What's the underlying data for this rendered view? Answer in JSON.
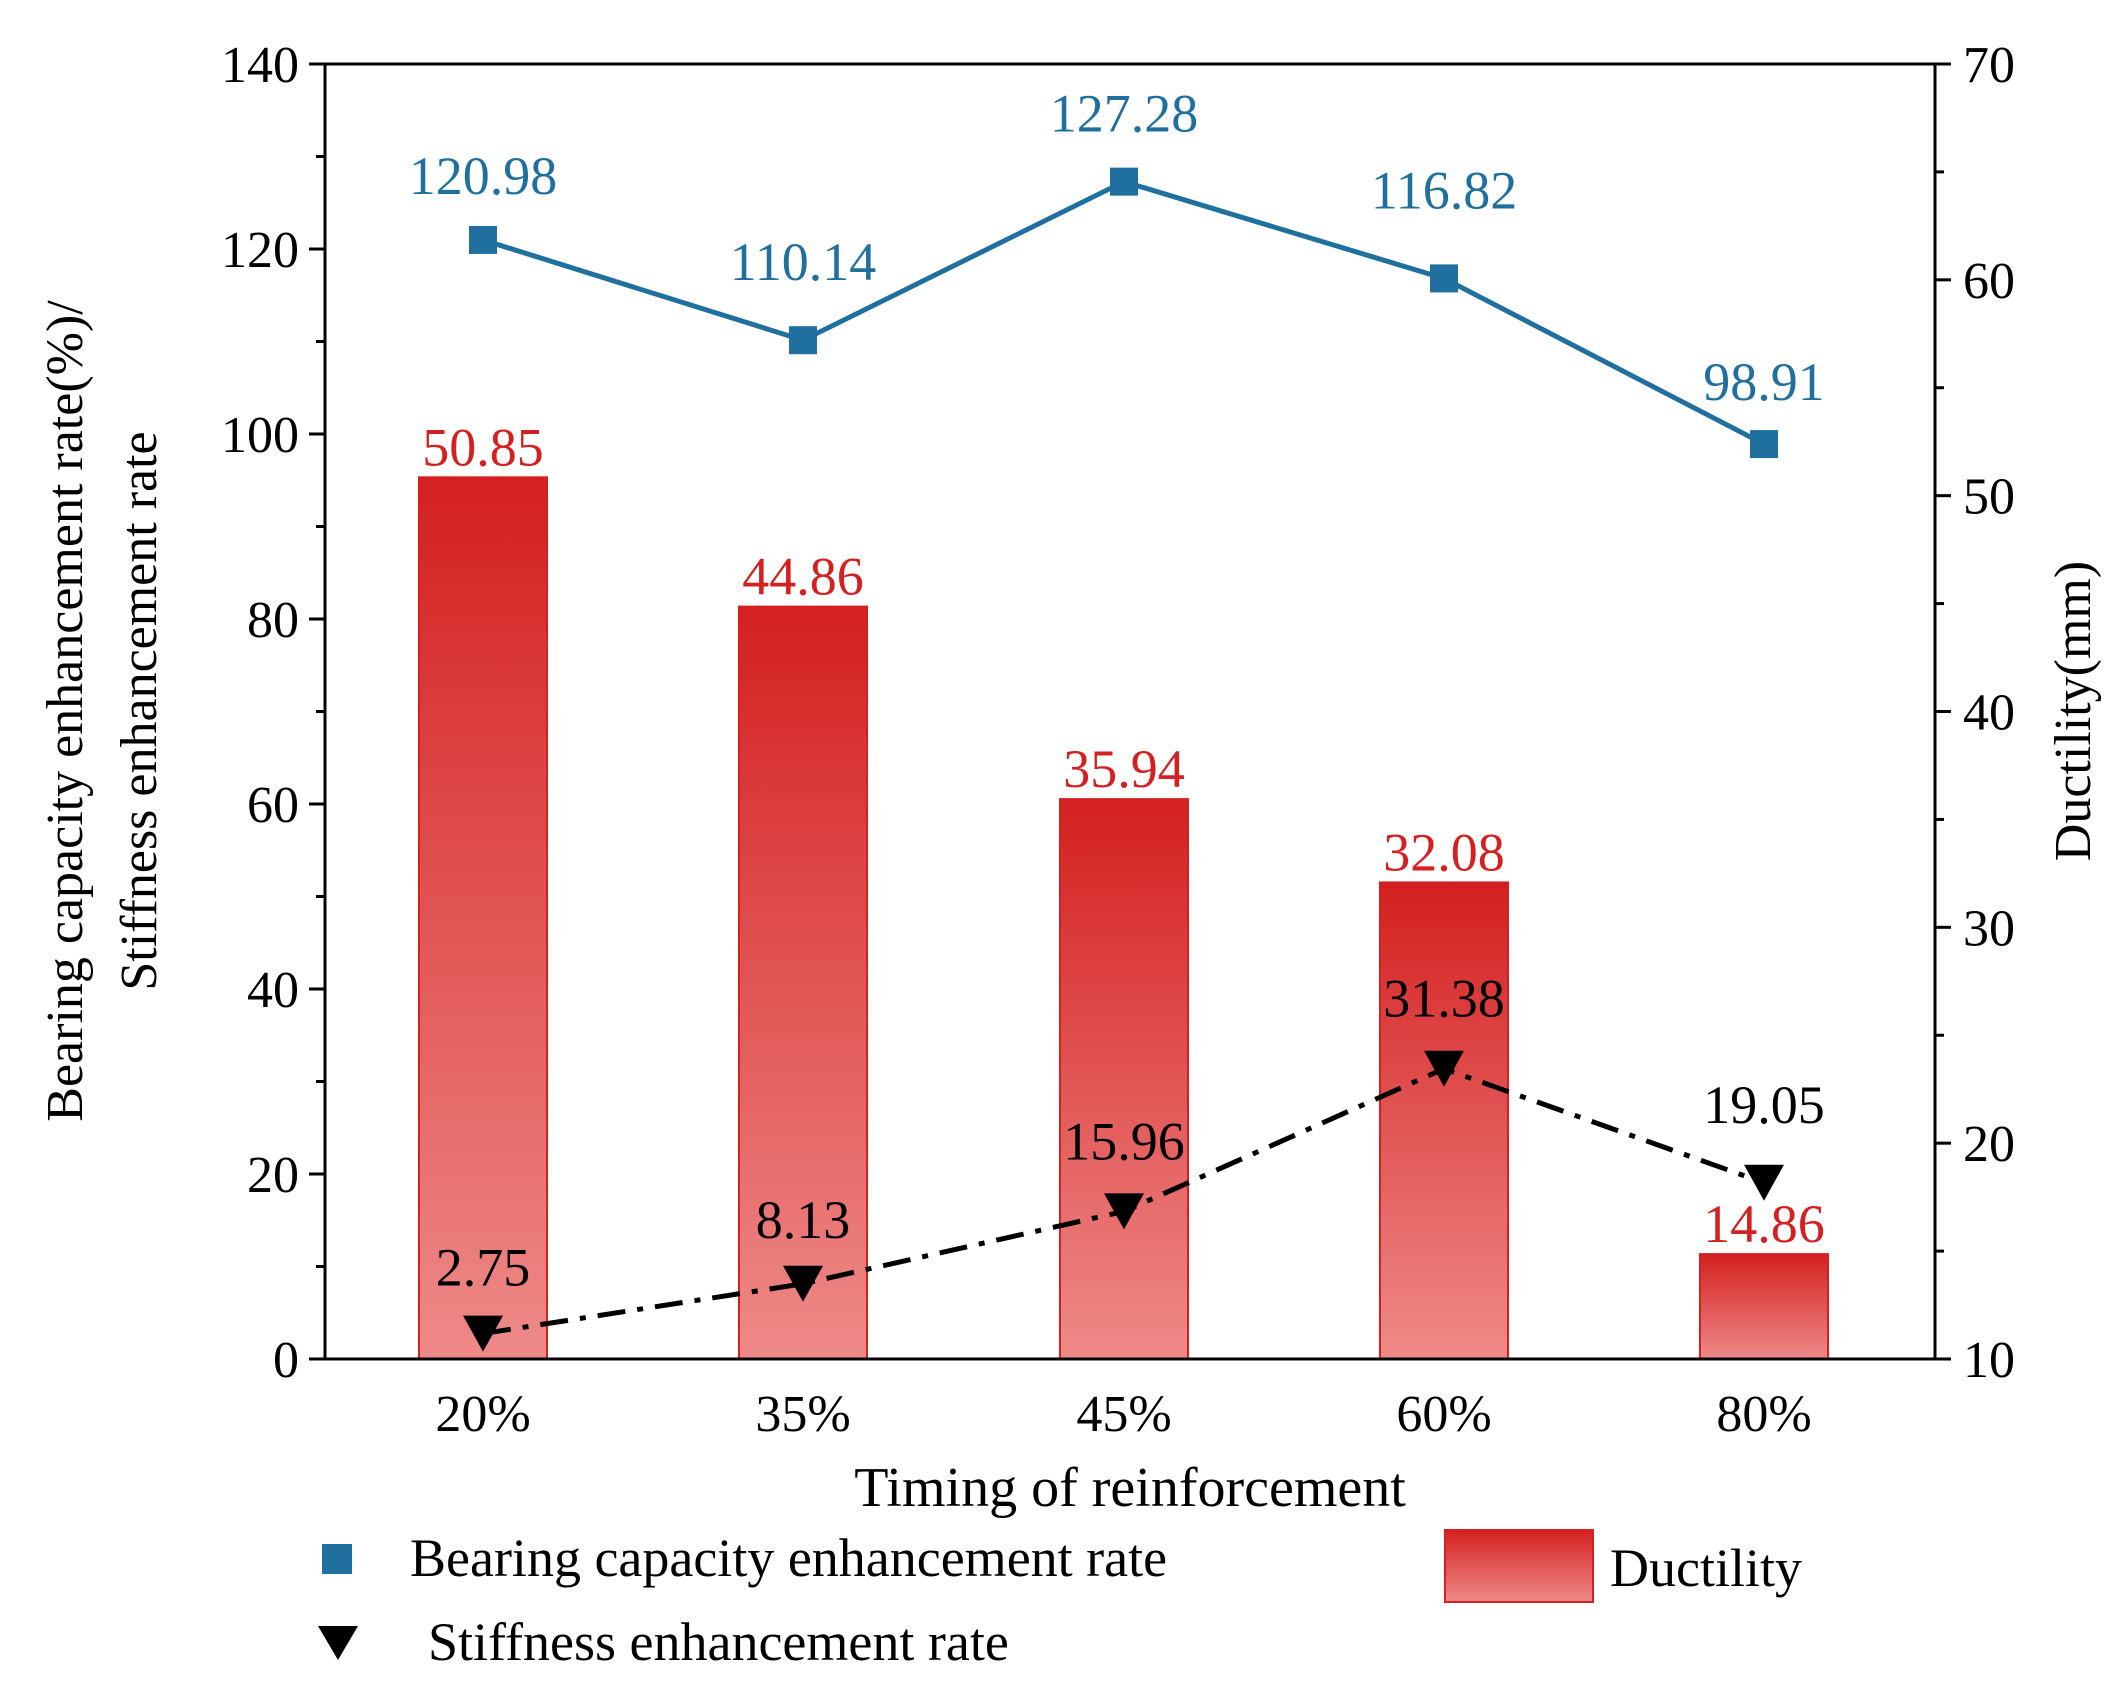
{
  "colors": {
    "bearing": "#1f6f9f",
    "stiffness": "#000000",
    "bar_top": "#d42020",
    "bar_bottom": "#ee8a88",
    "bar_label": "#d42020",
    "axis": "#000000"
  },
  "chart_data": {
    "type": "bar+line",
    "categories": [
      "20%",
      "35%",
      "45%",
      "60%",
      "80%"
    ],
    "xlabel": "Timing of reinforcement",
    "left_axis": {
      "label_line1": "Bearing capacity enhancement rate(%)/",
      "label_line2": "Stiffness enhancement rate",
      "ylim": [
        0,
        140
      ],
      "ticks": [
        0,
        20,
        40,
        60,
        80,
        100,
        120,
        140
      ]
    },
    "right_axis": {
      "label": "Ductility(mm)",
      "ylim": [
        10,
        70
      ],
      "ticks": [
        10,
        20,
        30,
        40,
        50,
        60,
        70
      ]
    },
    "series": [
      {
        "name": "Ductility",
        "type": "bar",
        "axis": "right",
        "values": [
          50.85,
          44.86,
          35.94,
          32.08,
          14.86
        ],
        "labels": [
          "50.85",
          "44.86",
          "35.94",
          "32.08",
          "14.86"
        ]
      },
      {
        "name": "Bearing capacity enhancement rate",
        "type": "line",
        "marker": "square",
        "axis": "left",
        "values": [
          120.98,
          110.14,
          127.28,
          116.82,
          98.91
        ],
        "labels": [
          "120.98",
          "110.14",
          "127.28",
          "116.82",
          "98.91"
        ]
      },
      {
        "name": "Stiffness enhancement rate",
        "type": "line",
        "marker": "triangle-down",
        "line_style": "dash-dot",
        "axis": "left",
        "values": [
          2.75,
          8.13,
          15.96,
          31.38,
          19.05
        ],
        "labels": [
          "2.75",
          "8.13",
          "15.96",
          "31.38",
          "19.05"
        ]
      }
    ],
    "legend": {
      "bearing": "Bearing capacity enhancement rate",
      "stiffness": "Stiffness enhancement rate",
      "ductility": "Ductility",
      "placement": "bottom"
    }
  }
}
